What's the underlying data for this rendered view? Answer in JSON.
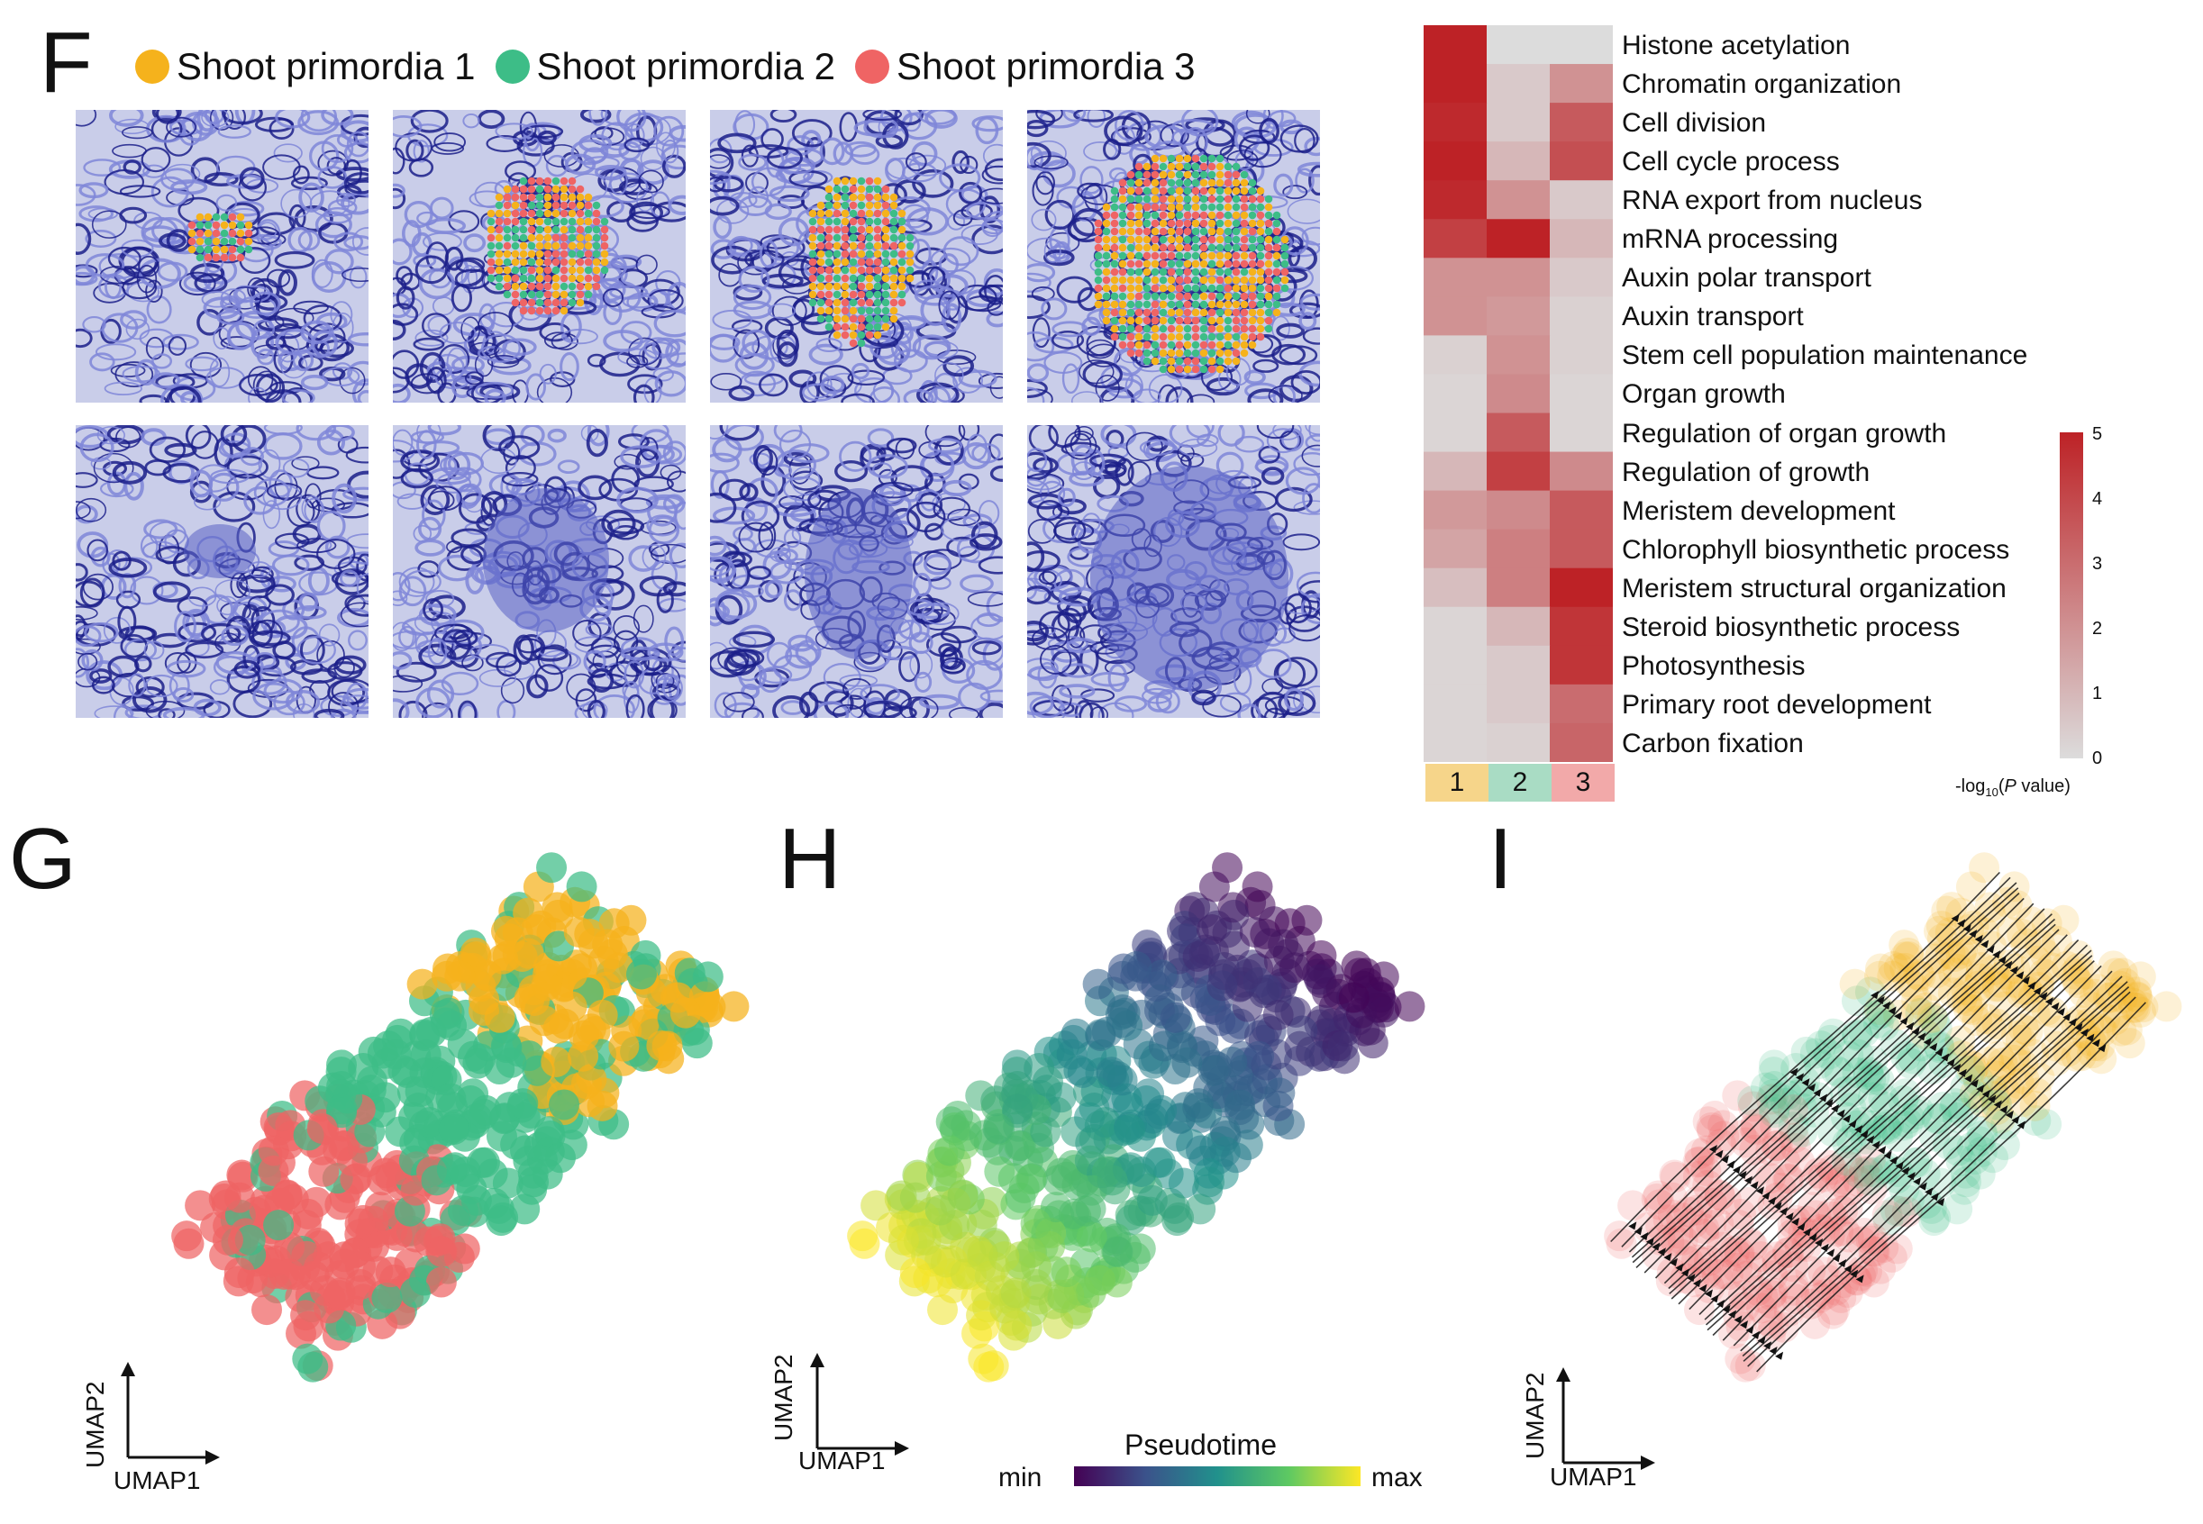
{
  "panel_letters": {
    "f": "F",
    "g": "G",
    "h": "H",
    "i": "I"
  },
  "legend": {
    "items": [
      {
        "label": "Shoot primordia 1",
        "color": "#f5b21c"
      },
      {
        "label": "Shoot primordia 2",
        "color": "#3dbd87"
      },
      {
        "label": "Shoot primordia 3",
        "color": "#ef6464"
      }
    ]
  },
  "colors": {
    "tissue_dark": "#1b1f8a",
    "tissue_light": "#7f86d8",
    "heat_low": "#dcdcdc",
    "heat_high": "#bd2226",
    "group1_bg": "#f6d58a",
    "group2_bg": "#a9dcc4",
    "group3_bg": "#f2a9a9"
  },
  "chart_data": [
    {
      "type": "heatmap",
      "rows": [
        "Histone acetylation",
        "Chromatin organization",
        "Cell division",
        "Cell cycle process",
        "RNA export from nucleus",
        "mRNA processing",
        "Auxin polar transport",
        "Auxin transport",
        "Stem cell population maintenance",
        "Organ growth",
        "Regulation of organ growth",
        "Regulation of growth",
        "Meristem development",
        "Chlorophyll biosynthetic process",
        "Meristem structural organization",
        "Steroid biosynthetic process",
        "Photosynthesis",
        "Primary root development",
        "Carbon fixation"
      ],
      "columns": [
        "1",
        "2",
        "3"
      ],
      "values": [
        [
          5.0,
          0.0,
          0.0
        ],
        [
          5.0,
          0.5,
          2.0
        ],
        [
          4.8,
          0.5,
          3.5
        ],
        [
          5.0,
          1.0,
          3.8
        ],
        [
          4.8,
          2.0,
          0.5
        ],
        [
          4.2,
          5.0,
          1.0
        ],
        [
          2.0,
          2.0,
          0.5
        ],
        [
          2.0,
          1.8,
          0.3
        ],
        [
          0.3,
          2.0,
          0.3
        ],
        [
          0.2,
          2.2,
          0.2
        ],
        [
          0.2,
          3.5,
          0.2
        ],
        [
          1.0,
          4.2,
          2.2
        ],
        [
          1.8,
          2.2,
          3.5
        ],
        [
          1.5,
          2.5,
          3.5
        ],
        [
          0.8,
          2.5,
          5.0
        ],
        [
          0.2,
          1.0,
          4.5
        ],
        [
          0.2,
          0.5,
          4.5
        ],
        [
          0.2,
          0.5,
          3.0
        ],
        [
          0.2,
          0.3,
          3.2
        ]
      ],
      "colorbar": {
        "ticks": [
          "5",
          "4",
          "3",
          "2",
          "1",
          "0"
        ],
        "range": [
          0,
          5
        ],
        "title_prefix": "-log",
        "title_sub": "10",
        "title_open": "(",
        "title_italic": "P",
        "title_rest": " value)"
      }
    },
    {
      "type": "scatter",
      "panel": "G",
      "xlabel": "UMAP1",
      "ylabel": "UMAP2",
      "series": [
        {
          "name": "Shoot primordia 1",
          "color": "#f5b21c",
          "points": [
            [
              0.66,
              0.22
            ],
            [
              0.72,
              0.3
            ],
            [
              0.78,
              0.38
            ],
            [
              0.7,
              0.45
            ],
            [
              0.63,
              0.36
            ],
            [
              0.58,
              0.3
            ],
            [
              0.8,
              0.28
            ],
            [
              0.74,
              0.52
            ],
            [
              0.6,
              0.42
            ],
            [
              0.68,
              0.26
            ]
          ]
        },
        {
          "name": "Shoot primordia 2",
          "color": "#3dbd87",
          "points": [
            [
              0.4,
              0.48
            ],
            [
              0.5,
              0.58
            ],
            [
              0.36,
              0.66
            ],
            [
              0.55,
              0.44
            ],
            [
              0.3,
              0.6
            ],
            [
              0.45,
              0.7
            ],
            [
              0.62,
              0.6
            ],
            [
              0.48,
              0.4
            ],
            [
              0.25,
              0.74
            ],
            [
              0.2,
              0.86
            ]
          ]
        },
        {
          "name": "Shoot primordia 3",
          "color": "#ef6464",
          "points": [
            [
              0.18,
              0.84
            ],
            [
              0.26,
              0.82
            ],
            [
              0.14,
              0.9
            ],
            [
              0.3,
              0.88
            ],
            [
              0.22,
              0.94
            ],
            [
              0.1,
              0.86
            ],
            [
              0.34,
              0.8
            ],
            [
              0.28,
              0.96
            ],
            [
              0.16,
              0.78
            ],
            [
              0.36,
              0.92
            ]
          ]
        }
      ]
    },
    {
      "type": "scatter",
      "panel": "H",
      "xlabel": "UMAP1",
      "ylabel": "UMAP2",
      "colorbar": {
        "title": "Pseudotime",
        "min_label": "min",
        "max_label": "max"
      }
    },
    {
      "type": "scatter",
      "panel": "I",
      "xlabel": "UMAP1",
      "ylabel": "UMAP2"
    }
  ]
}
